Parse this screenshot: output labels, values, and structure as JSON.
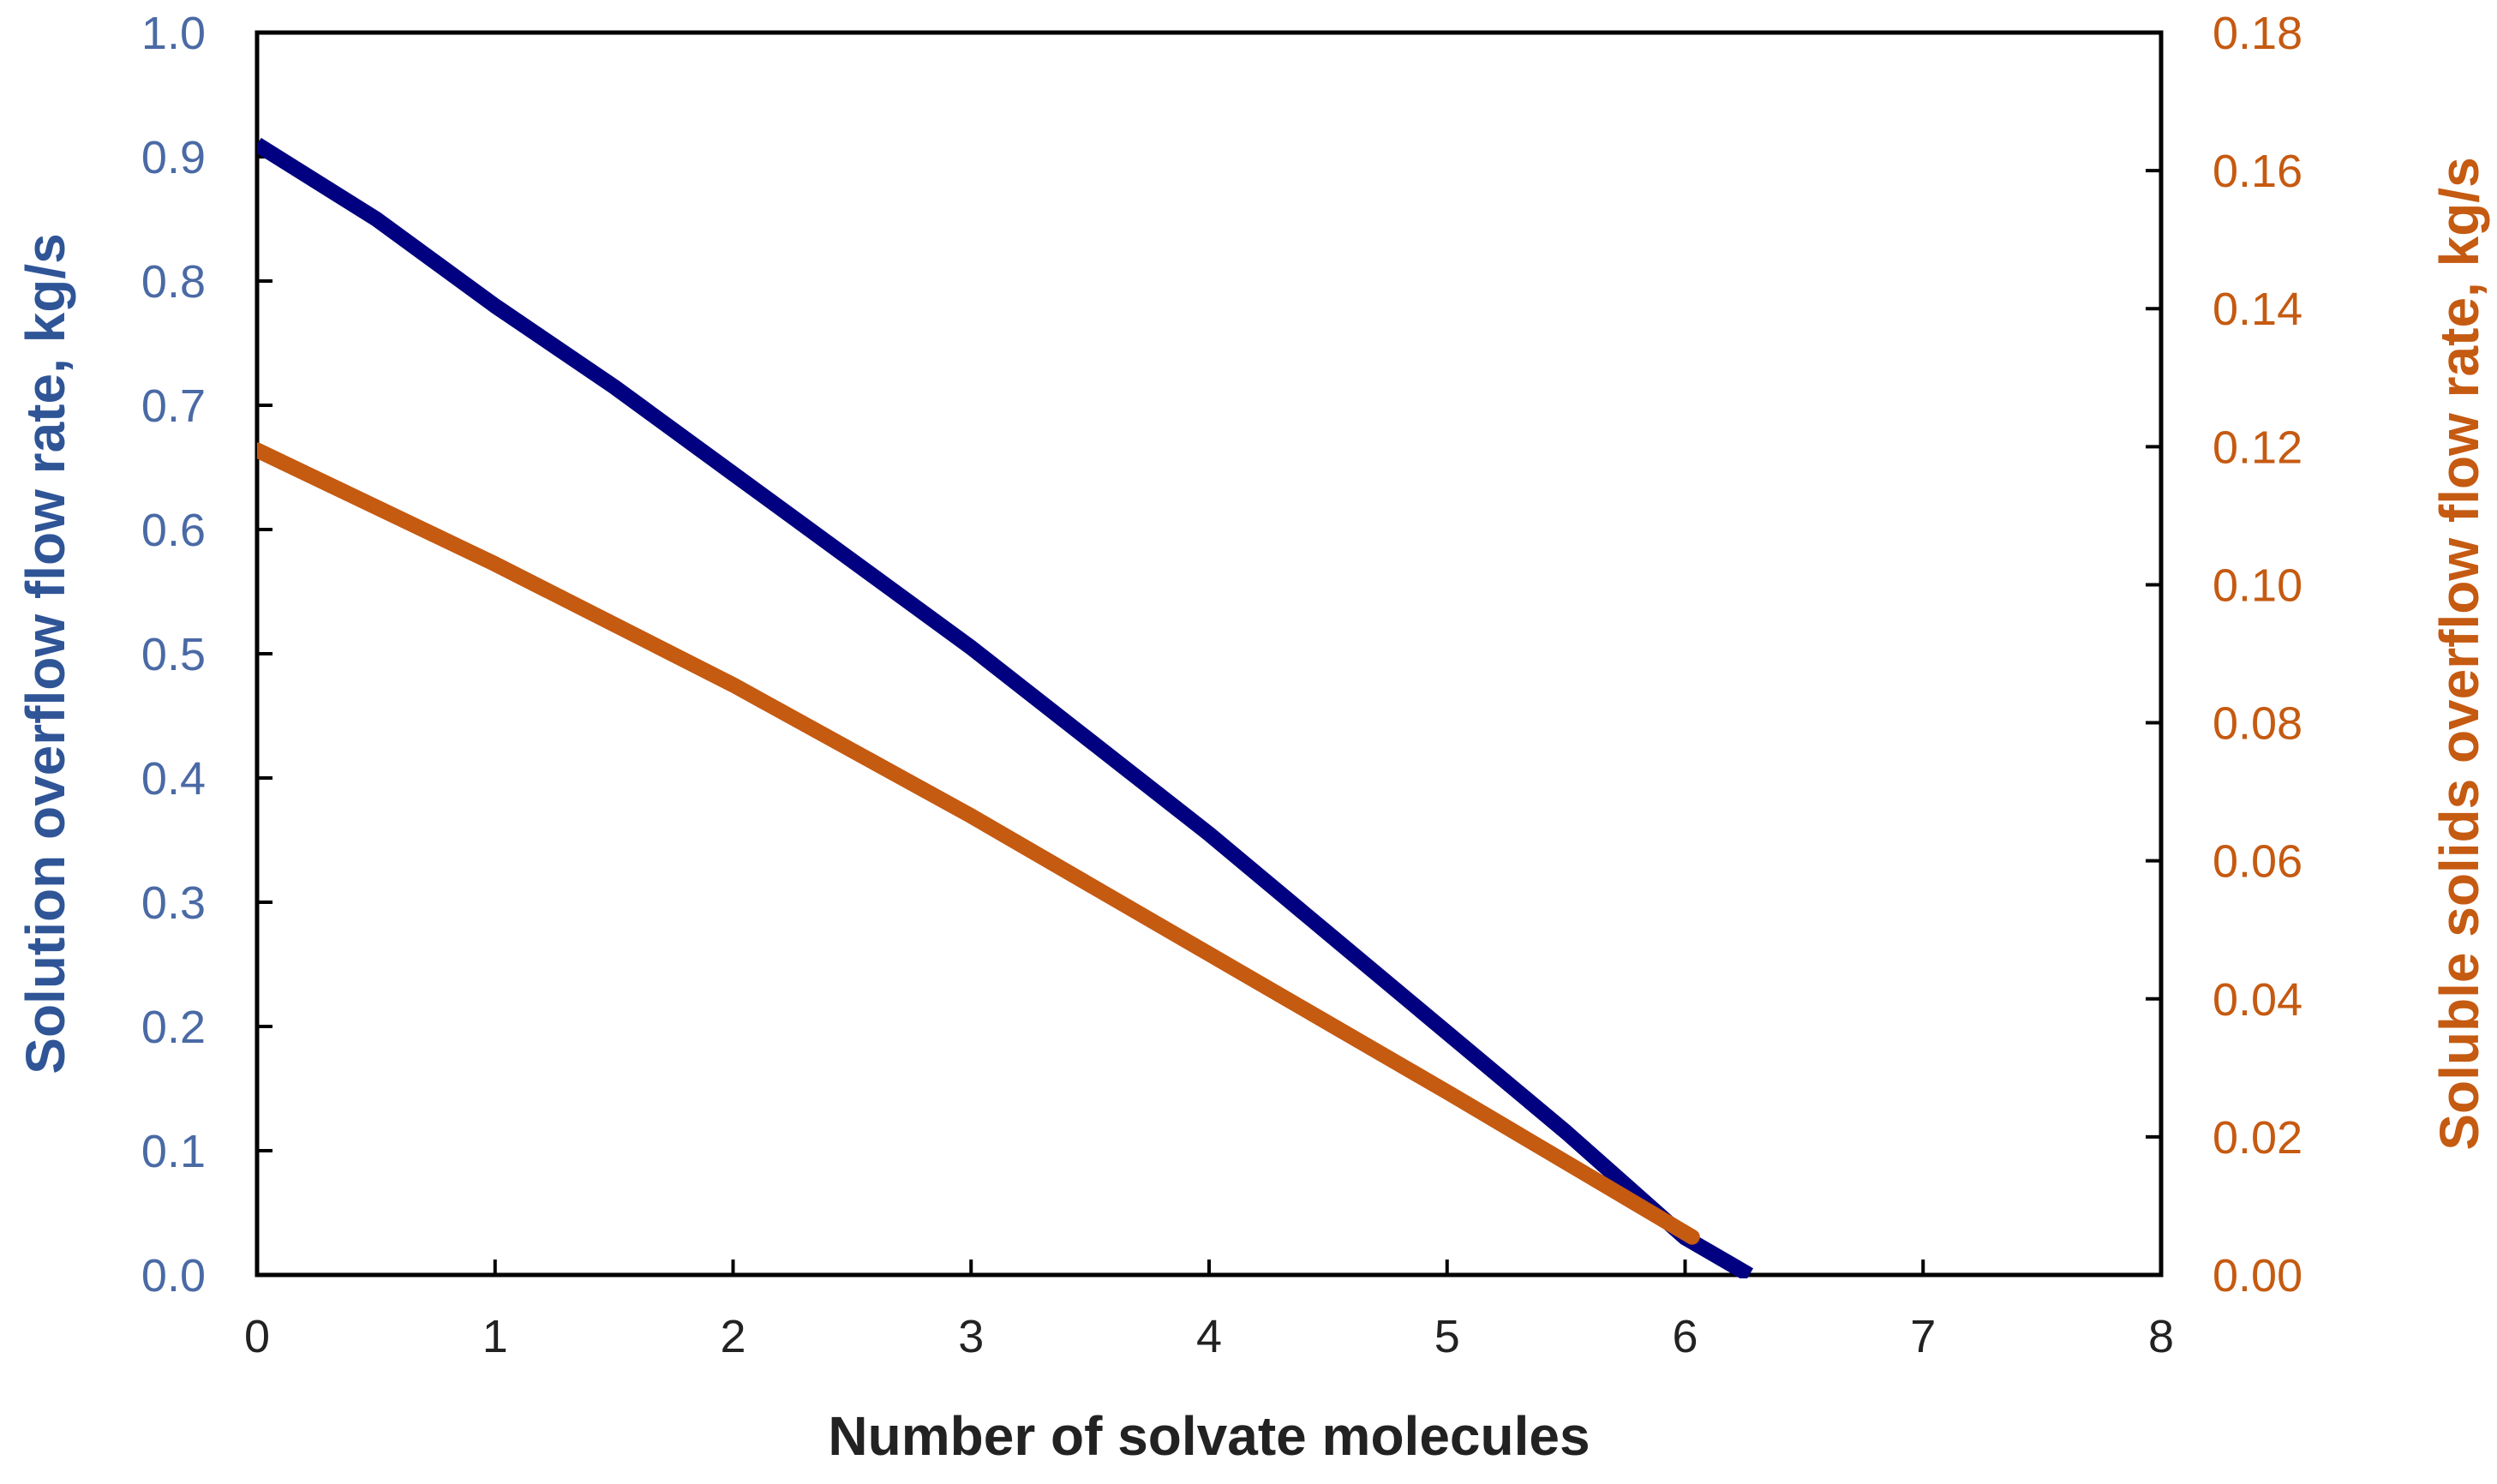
{
  "chart_data": {
    "type": "line",
    "title": "",
    "xlabel": "Number of solvate molecules",
    "ylabel": "Solution overflow flow rate, kg/s",
    "y2label": "Soluble solids overflow flow rate, kg/s",
    "xlim": [
      0,
      8
    ],
    "ylim": [
      0,
      1.0
    ],
    "y2lim": [
      0,
      0.18
    ],
    "grid": false,
    "legend": "none",
    "x_ticks": [
      "0",
      "1",
      "2",
      "3",
      "4",
      "5",
      "6",
      "7",
      "8"
    ],
    "y_ticks": [
      "0.0",
      "0.1",
      "0.2",
      "0.3",
      "0.4",
      "0.5",
      "0.6",
      "0.7",
      "0.8",
      "0.9",
      "1.0"
    ],
    "y2_ticks": [
      "0.00",
      "0.02",
      "0.04",
      "0.06",
      "0.08",
      "0.10",
      "0.12",
      "0.14",
      "0.16",
      "0.18"
    ],
    "colors": {
      "left_axis": "#4a6aa5",
      "right_axis": "#c55a11",
      "series1": "#000080",
      "series2": "#c55a11"
    },
    "series": [
      {
        "axis": "left",
        "x": [
          0,
          0.5,
          1,
          1.5,
          2,
          2.5,
          3,
          3.5,
          4,
          4.5,
          5,
          5.5,
          6,
          6.27
        ],
        "y": [
          0.91,
          0.85,
          0.78,
          0.715,
          0.645,
          0.575,
          0.505,
          0.43,
          0.355,
          0.275,
          0.195,
          0.115,
          0.03,
          0.0
        ]
      },
      {
        "axis": "right",
        "x": [
          0,
          1,
          2,
          3,
          4,
          5,
          6.03
        ],
        "y": [
          0.1195,
          0.103,
          0.0855,
          0.0665,
          0.0465,
          0.0265,
          0.0055
        ]
      }
    ]
  }
}
